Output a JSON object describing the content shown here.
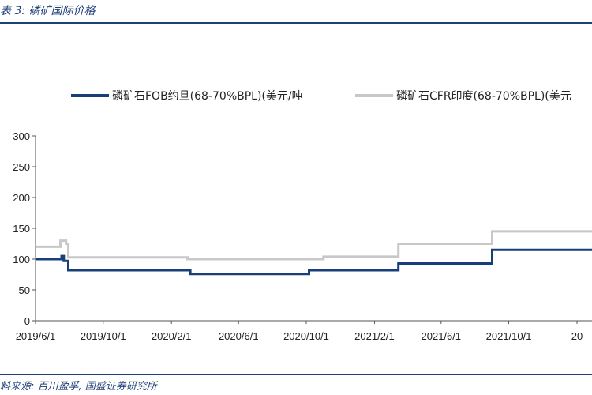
{
  "header": {
    "title": "表 3:  磷矿国际价格"
  },
  "footer": {
    "source": "料来源:  百川盈孚, 国盛证券研究所"
  },
  "colors": {
    "fob": "#173f79",
    "cfr": "#c8c8c8",
    "accent": "#1f3f77"
  },
  "chart_data": {
    "type": "line",
    "title": "",
    "xlabel": "",
    "ylabel": "",
    "ylim": [
      0,
      300
    ],
    "yticks": [
      0,
      50,
      100,
      150,
      200,
      250,
      300
    ],
    "x_tick_labels": [
      "2019/6/1",
      "2019/10/1",
      "2020/2/1",
      "2020/6/1",
      "2020/10/1",
      "2021/2/1",
      "2021/6/1",
      "2021/10/1",
      "20"
    ],
    "x_tick_dates": [
      "2019-06-01",
      "2019-10-01",
      "2020-02-01",
      "2020-06-01",
      "2020-10-01",
      "2021-02-01",
      "2021-06-01",
      "2021-10-01",
      "2022-02-01"
    ],
    "legend_position": "top",
    "grid": false,
    "series": [
      {
        "name": "磷矿石FOB约旦(68-70%BPL)(美元/吨",
        "step": true,
        "points": [
          [
            "2019-06-01",
            100
          ],
          [
            "2019-07-15",
            100
          ],
          [
            "2019-07-18",
            105
          ],
          [
            "2019-07-22",
            97
          ],
          [
            "2019-07-29",
            97
          ],
          [
            "2019-07-30",
            82
          ],
          [
            "2020-03-05",
            82
          ],
          [
            "2020-03-06",
            76
          ],
          [
            "2020-10-05",
            76
          ],
          [
            "2020-10-06",
            82
          ],
          [
            "2021-03-15",
            82
          ],
          [
            "2021-03-16",
            93
          ],
          [
            "2021-08-31",
            93
          ],
          [
            "2021-09-01",
            115
          ],
          [
            "2022-02-28",
            115
          ]
        ]
      },
      {
        "name": "磷矿石CFR印度(68-70%BPL)(美元",
        "step": true,
        "points": [
          [
            "2019-06-01",
            120
          ],
          [
            "2019-07-14",
            120
          ],
          [
            "2019-07-16",
            130
          ],
          [
            "2019-07-24",
            130
          ],
          [
            "2019-07-26",
            125
          ],
          [
            "2019-07-29",
            125
          ],
          [
            "2019-07-30",
            103
          ],
          [
            "2020-02-28",
            103
          ],
          [
            "2020-03-01",
            100
          ],
          [
            "2020-10-31",
            100
          ],
          [
            "2020-11-01",
            104
          ],
          [
            "2021-03-15",
            104
          ],
          [
            "2021-03-16",
            125
          ],
          [
            "2021-08-31",
            125
          ],
          [
            "2021-09-01",
            145
          ],
          [
            "2022-02-28",
            145
          ]
        ]
      }
    ]
  }
}
